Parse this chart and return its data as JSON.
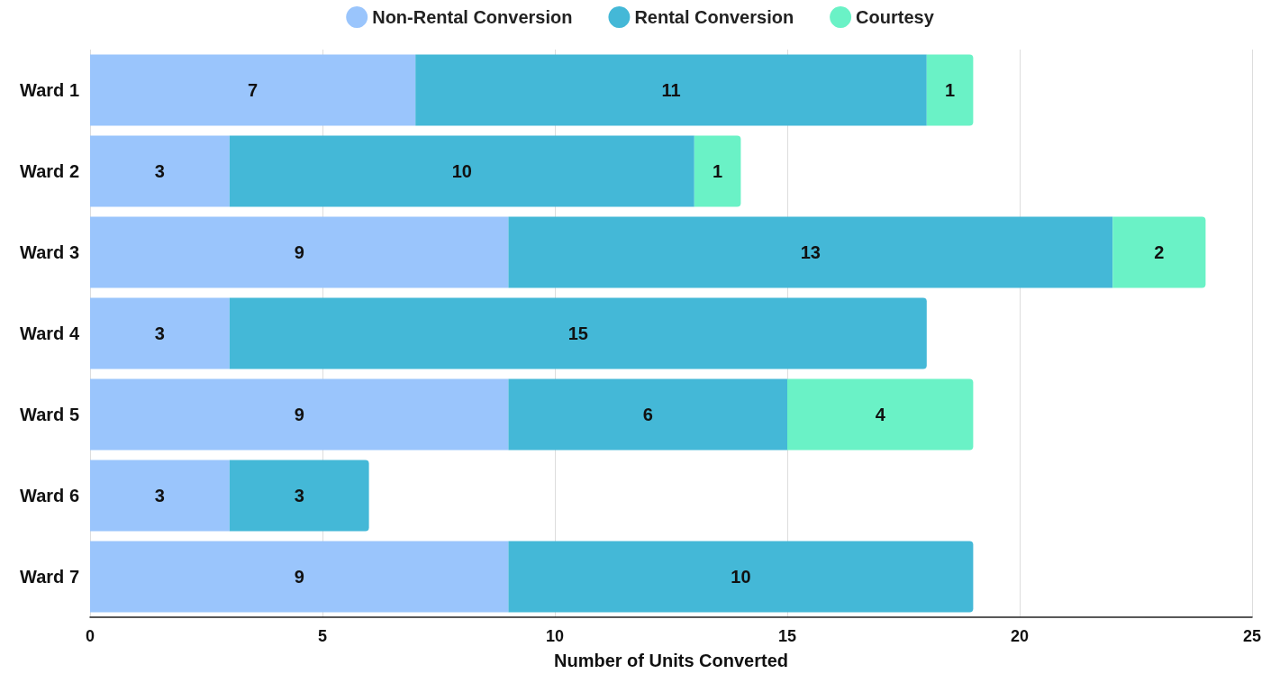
{
  "chart_data": {
    "type": "bar",
    "orientation": "horizontal",
    "stacked": true,
    "xlabel": "Number of Units Converted",
    "categories": [
      "Ward 1",
      "Ward 2",
      "Ward 3",
      "Ward 4",
      "Ward 5",
      "Ward 6",
      "Ward 7"
    ],
    "series": [
      {
        "name": "Non-Rental Conversion",
        "color": "#9ac5fc",
        "values": [
          7,
          3,
          9,
          3,
          9,
          3,
          9
        ]
      },
      {
        "name": "Rental Conversion",
        "color": "#44b8d7",
        "values": [
          11,
          10,
          13,
          15,
          6,
          3,
          10
        ]
      },
      {
        "name": "Courtesy",
        "color": "#6af2c6",
        "values": [
          1,
          1,
          2,
          null,
          4,
          null,
          null
        ]
      }
    ],
    "xlim": [
      0,
      25
    ],
    "xticks": [
      0,
      5,
      10,
      15,
      20,
      25
    ],
    "grid": "x",
    "legend": "top",
    "data_labels": true
  }
}
